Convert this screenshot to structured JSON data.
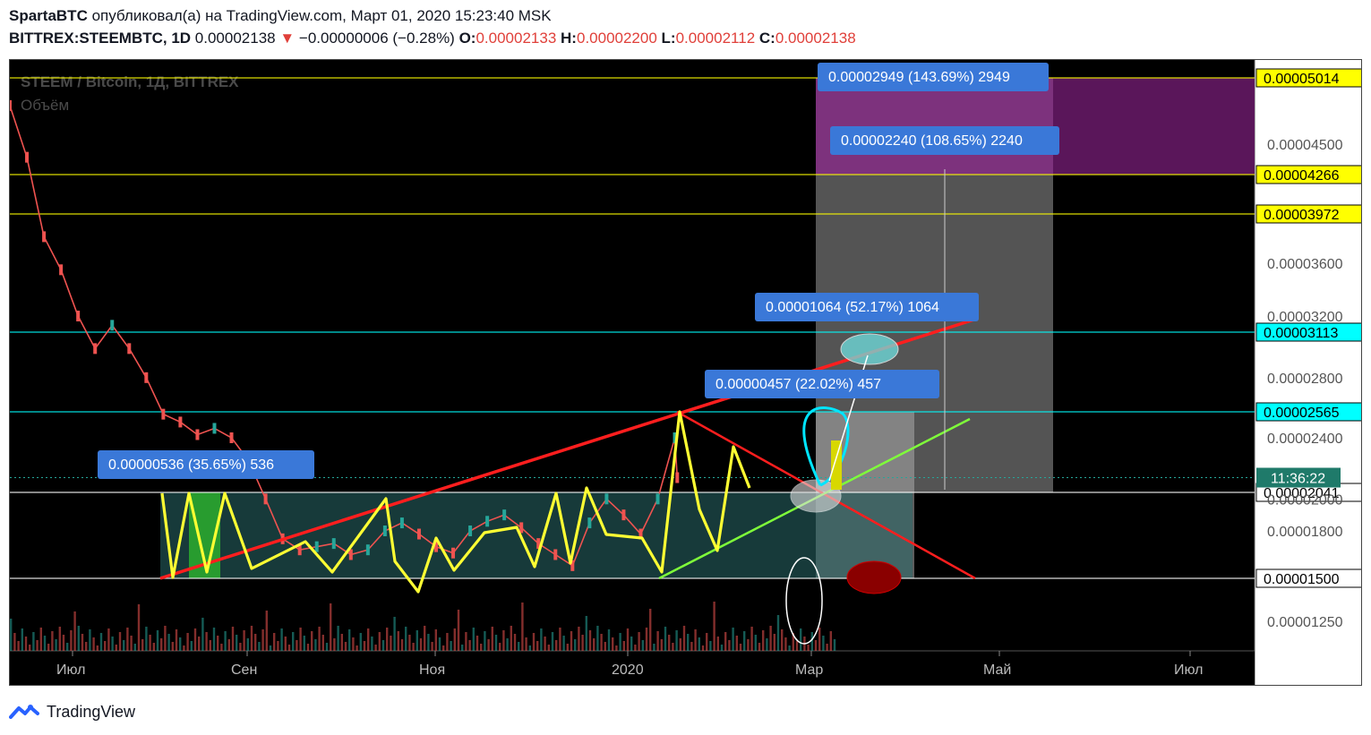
{
  "header": {
    "author": "SpartaBTC",
    "published_text": " опубликовал(а) на TradingView.com, Март 01, 2020 15:23:40 MSK",
    "symbol": "BITTREX:STEEMBTC, 1D",
    "price": "0.00002138",
    "change": "−0.00000006 (−0.28%)",
    "o_label": "O:",
    "o_value": "0.00002133",
    "h_label": "H:",
    "h_value": "0.00002200",
    "l_label": "L:",
    "l_value": "0.00002112",
    "c_label": "C:",
    "c_value": "0.00002138"
  },
  "footer": {
    "brand": "TradingView"
  },
  "colors": {
    "background": "#000000",
    "candle_up": "#26a69a",
    "candle_down": "#ef5350",
    "trend_red": "#ff1e1e",
    "zigzag_yellow": "#ffff33",
    "support_green": "#7fff3a",
    "level_yellow": "#ffff00",
    "level_cyan": "#00ffff",
    "label_blue": "#3a78d8",
    "target_purple": "#6a1a6a"
  },
  "chart_data": {
    "type": "line",
    "watermark_title": "STEEM / Bitcoin, 1Д, BITTREX",
    "watermark_sub": "Объём",
    "price_axis_ticks": [
      "0.00004500",
      "0.00003600",
      "0.00003200",
      "0.00002800",
      "0.00002400",
      "0.00002000",
      "0.00001800",
      "0.00001250"
    ],
    "tick_values": [
      4.5e-05,
      3.6e-05,
      3.2e-05,
      2.8e-05,
      2.4e-05,
      2e-05,
      1.8e-05,
      1.25e-05
    ],
    "time_axis_labels": [
      "Июл",
      "Сен",
      "Ноя",
      "2020",
      "Мар",
      "Май",
      "Июл"
    ],
    "ylim": [
      1.15e-05,
      5.2e-05
    ],
    "horizontal_levels": [
      {
        "label": "0.00005014",
        "value": 5.014e-05,
        "style": "yellow"
      },
      {
        "label": "0.00004266",
        "value": 4.266e-05,
        "style": "yellow"
      },
      {
        "label": "0.00003972",
        "value": 3.972e-05,
        "style": "yellow"
      },
      {
        "label": "0.00003113",
        "value": 3.113e-05,
        "style": "cyan"
      },
      {
        "label": "0.00002565",
        "value": 2.565e-05,
        "style": "cyan"
      },
      {
        "label": "0.00002041",
        "value": 2.041e-05,
        "style": "white"
      },
      {
        "label": "0.00001500",
        "value": 1.5e-05,
        "style": "white"
      }
    ],
    "countdown_label": "11:36:22",
    "countdown_value": 2.138e-05,
    "measure_labels": [
      {
        "text": "0.00002949 (143.69%) 2949"
      },
      {
        "text": "0.00002240 (108.65%) 2240"
      },
      {
        "text": "0.00001064 (52.17%) 1064"
      },
      {
        "text": "0.00000457 (22.02%) 457"
      },
      {
        "text": "0.00000536 (35.65%) 536"
      }
    ],
    "price_series": [
      [
        "2019-06-01",
        4.8e-05
      ],
      [
        "2019-06-08",
        4.4e-05
      ],
      [
        "2019-06-15",
        3.8e-05
      ],
      [
        "2019-06-22",
        3.55e-05
      ],
      [
        "2019-06-29",
        3.2e-05
      ],
      [
        "2019-07-06",
        3e-05
      ],
      [
        "2019-07-13",
        3.15e-05
      ],
      [
        "2019-07-20",
        3e-05
      ],
      [
        "2019-07-27",
        2.8e-05
      ],
      [
        "2019-08-03",
        2.55e-05
      ],
      [
        "2019-08-10",
        2.5e-05
      ],
      [
        "2019-08-17",
        2.42e-05
      ],
      [
        "2019-08-24",
        2.46e-05
      ],
      [
        "2019-08-31",
        2.4e-05
      ],
      [
        "2019-09-07",
        2.25e-05
      ],
      [
        "2019-09-14",
        2e-05
      ],
      [
        "2019-09-21",
        1.75e-05
      ],
      [
        "2019-09-28",
        1.68e-05
      ],
      [
        "2019-10-05",
        1.7e-05
      ],
      [
        "2019-10-12",
        1.72e-05
      ],
      [
        "2019-10-19",
        1.65e-05
      ],
      [
        "2019-10-26",
        1.68e-05
      ],
      [
        "2019-11-02",
        1.8e-05
      ],
      [
        "2019-11-09",
        1.85e-05
      ],
      [
        "2019-11-16",
        1.78e-05
      ],
      [
        "2019-11-23",
        1.7e-05
      ],
      [
        "2019-11-30",
        1.66e-05
      ],
      [
        "2019-12-07",
        1.8e-05
      ],
      [
        "2019-12-14",
        1.86e-05
      ],
      [
        "2019-12-21",
        1.9e-05
      ],
      [
        "2019-12-28",
        1.82e-05
      ],
      [
        "2020-01-04",
        1.72e-05
      ],
      [
        "2020-01-11",
        1.65e-05
      ],
      [
        "2020-01-18",
        1.58e-05
      ],
      [
        "2020-01-25",
        1.85e-05
      ],
      [
        "2020-02-01",
        2e-05
      ],
      [
        "2020-02-08",
        1.9e-05
      ],
      [
        "2020-02-15",
        1.78e-05
      ],
      [
        "2020-02-22",
        2e-05
      ],
      [
        "2020-02-29",
        2.4e-05
      ],
      [
        "2020-03-01",
        2.138e-05
      ]
    ]
  }
}
